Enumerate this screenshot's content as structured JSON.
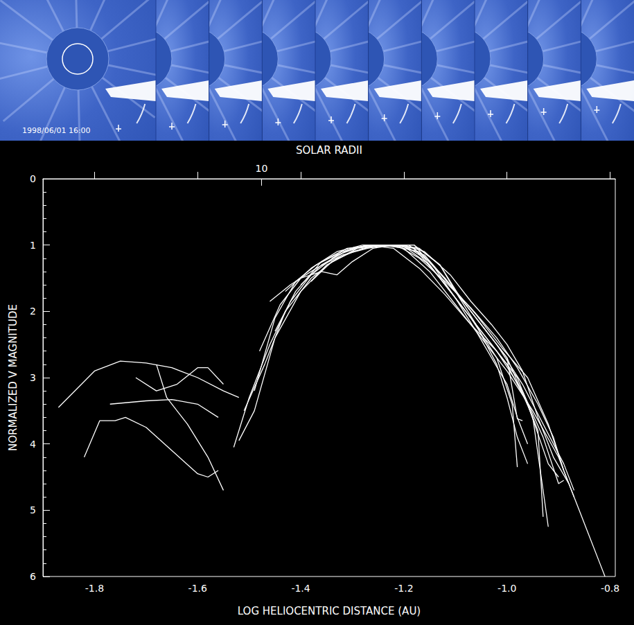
{
  "image_strip": {
    "date_label": "1998/06/01 16:00",
    "panels": 10
  },
  "chart_data": {
    "type": "line",
    "xlabel": "LOG HELIOCENTRIC DISTANCE (AU)",
    "ylabel": "NORMALIZED V MAGNITUDE",
    "x2label": "SOLAR RADII",
    "xlim": [
      -1.9,
      -0.79
    ],
    "xticks": [
      -1.8,
      -1.6,
      -1.4,
      -1.2,
      {
        "value": -1,
        "label": "-1.0"
      },
      -0.8
    ],
    "ylim": [
      6,
      0
    ],
    "yticks": [
      0,
      1,
      2,
      3,
      4,
      5,
      6
    ],
    "x2lim": [
      3.8,
      47.9
    ],
    "x2ticks": [
      10
    ],
    "color": "#ffffff",
    "grid": false,
    "series": [
      {
        "x": [
          -1.87,
          -1.8,
          -1.75,
          -1.7,
          -1.65,
          -1.6,
          -1.55,
          -1.52
        ],
        "values": [
          3.45,
          2.9,
          2.75,
          2.78,
          2.85,
          3.0,
          3.2,
          3.3
        ]
      },
      {
        "x": [
          -1.82,
          -1.79,
          -1.76,
          -1.74,
          -1.7,
          -1.65,
          -1.6,
          -1.58,
          -1.56
        ],
        "values": [
          4.2,
          3.65,
          3.65,
          3.6,
          3.75,
          4.1,
          4.45,
          4.5,
          4.4
        ]
      },
      {
        "x": [
          -1.77,
          -1.7,
          -1.65,
          -1.6,
          -1.56
        ],
        "values": [
          3.4,
          3.35,
          3.33,
          3.4,
          3.6
        ]
      },
      {
        "x": [
          -1.72,
          -1.68,
          -1.64,
          -1.6,
          -1.58,
          -1.55
        ],
        "values": [
          3.0,
          3.2,
          3.1,
          2.85,
          2.85,
          3.1
        ]
      },
      {
        "x": [
          -1.68,
          -1.66,
          -1.62,
          -1.58,
          -1.55
        ],
        "values": [
          2.8,
          3.3,
          3.7,
          4.2,
          4.7
        ]
      },
      {
        "x": [
          -1.53,
          -1.5,
          -1.46,
          -1.42,
          -1.38,
          -1.33,
          -1.28,
          -1.24,
          -1.2,
          -1.15,
          -1.1,
          -1.05,
          -1.0,
          -0.95,
          -0.9,
          -0.86,
          -0.82,
          -0.81
        ],
        "values": [
          4.05,
          3.3,
          2.5,
          1.85,
          1.45,
          1.15,
          1.02,
          1.0,
          1.05,
          1.4,
          1.9,
          2.4,
          2.9,
          3.5,
          4.2,
          5.0,
          5.8,
          6.0
        ]
      },
      {
        "x": [
          -1.52,
          -1.49,
          -1.45,
          -1.4,
          -1.35,
          -1.3,
          -1.25,
          -1.2,
          -1.15,
          -1.1,
          -1.05,
          -1.0,
          -0.96,
          -0.92,
          -0.9
        ],
        "values": [
          3.95,
          3.5,
          2.4,
          1.7,
          1.3,
          1.1,
          1.0,
          1.02,
          1.3,
          1.8,
          2.3,
          2.8,
          3.4,
          4.3,
          4.5
        ]
      },
      {
        "x": [
          -1.51,
          -1.47,
          -1.43,
          -1.38,
          -1.33,
          -1.28,
          -1.24,
          -1.19,
          -1.15,
          -1.1,
          -1.05,
          -1.0,
          -0.95,
          -0.92
        ],
        "values": [
          3.5,
          2.8,
          2.0,
          1.5,
          1.2,
          1.05,
          1.0,
          1.0,
          1.25,
          1.7,
          2.2,
          2.7,
          3.6,
          5.25
        ]
      },
      {
        "x": [
          -1.46,
          -1.42,
          -1.37,
          -1.32,
          -1.27,
          -1.23,
          -1.18,
          -1.13,
          -1.08,
          -1.03,
          -0.98,
          -0.94,
          -0.93
        ],
        "values": [
          1.85,
          1.6,
          1.35,
          1.15,
          1.05,
          1.0,
          1.05,
          1.5,
          2.0,
          2.5,
          3.0,
          3.8,
          5.1
        ]
      },
      {
        "x": [
          -1.43,
          -1.38,
          -1.33,
          -1.28,
          -1.24,
          -1.2,
          -1.16,
          -1.12,
          -1.07,
          -1.02,
          -0.99,
          -0.98
        ],
        "values": [
          1.7,
          1.35,
          1.1,
          1.0,
          1.0,
          1.0,
          1.2,
          1.6,
          2.1,
          2.7,
          3.4,
          4.35
        ]
      },
      {
        "x": [
          -1.4,
          -1.36,
          -1.31,
          -1.27,
          -1.22,
          -1.17,
          -1.12,
          -1.07,
          -1.02,
          -0.97,
          -0.93,
          -0.89,
          -0.87
        ],
        "values": [
          1.6,
          1.3,
          1.08,
          1.0,
          1.02,
          1.1,
          1.5,
          2.0,
          2.5,
          3.1,
          3.7,
          4.3,
          4.7
        ]
      },
      {
        "x": [
          -1.48,
          -1.44,
          -1.4,
          -1.36,
          -1.33,
          -1.3,
          -1.26,
          -1.22,
          -1.18,
          -1.13,
          -1.09,
          -1.04,
          -1.0,
          -0.98,
          -0.97
        ],
        "values": [
          2.6,
          1.9,
          1.5,
          1.4,
          1.45,
          1.25,
          1.05,
          1.0,
          1.0,
          1.3,
          1.8,
          2.3,
          2.7,
          3.62,
          3.65
        ]
      },
      {
        "x": [
          -1.49,
          -1.45,
          -1.41,
          -1.37,
          -1.32,
          -1.27,
          -1.22,
          -1.17,
          -1.12,
          -1.07,
          -1.02,
          -0.97,
          -0.93,
          -0.9,
          -0.89
        ],
        "values": [
          3.2,
          2.1,
          1.55,
          1.3,
          1.1,
          1.0,
          1.05,
          1.35,
          1.75,
          2.2,
          2.6,
          3.2,
          3.9,
          4.6,
          4.55
        ]
      },
      {
        "x": [
          -1.45,
          -1.41,
          -1.36,
          -1.31,
          -1.26,
          -1.21,
          -1.16,
          -1.11,
          -1.06,
          -1.01,
          -0.96,
          -0.92,
          -0.89,
          -0.87
        ],
        "values": [
          2.3,
          1.7,
          1.25,
          1.05,
          1.0,
          1.0,
          1.15,
          1.6,
          2.05,
          2.55,
          3.0,
          3.7,
          4.4,
          4.8
        ]
      },
      {
        "x": [
          -1.38,
          -1.34,
          -1.29,
          -1.25,
          -1.21,
          -1.17,
          -1.12,
          -1.07,
          -1.02,
          -0.98,
          -0.94,
          -0.91,
          -0.89
        ],
        "values": [
          1.55,
          1.25,
          1.05,
          1.0,
          1.02,
          1.2,
          1.55,
          1.95,
          2.4,
          2.85,
          3.4,
          3.9,
          4.4
        ]
      },
      {
        "x": [
          -1.34,
          -1.3,
          -1.25,
          -1.2,
          -1.16,
          -1.11,
          -1.07,
          -1.03,
          -1.0,
          -0.97,
          -0.94,
          -0.91,
          -0.88
        ],
        "values": [
          1.2,
          1.05,
          1.0,
          1.0,
          1.1,
          1.45,
          1.85,
          2.2,
          2.5,
          2.9,
          3.6,
          4.2,
          4.6
        ]
      },
      {
        "x": [
          -1.26,
          -1.22,
          -1.18,
          -1.14,
          -1.1,
          -1.06,
          -1.03,
          -1.0,
          -0.98,
          -0.96
        ],
        "values": [
          1.0,
          1.0,
          1.0,
          1.35,
          1.8,
          2.3,
          2.7,
          3.1,
          3.6,
          4.0
        ]
      },
      {
        "x": [
          -1.21,
          -1.17,
          -1.13,
          -1.1,
          -1.06,
          -1.02,
          -1.0,
          -0.98,
          -0.96
        ],
        "values": [
          1.0,
          1.05,
          1.3,
          1.7,
          2.2,
          2.8,
          3.3,
          3.9,
          4.3
        ]
      }
    ]
  }
}
